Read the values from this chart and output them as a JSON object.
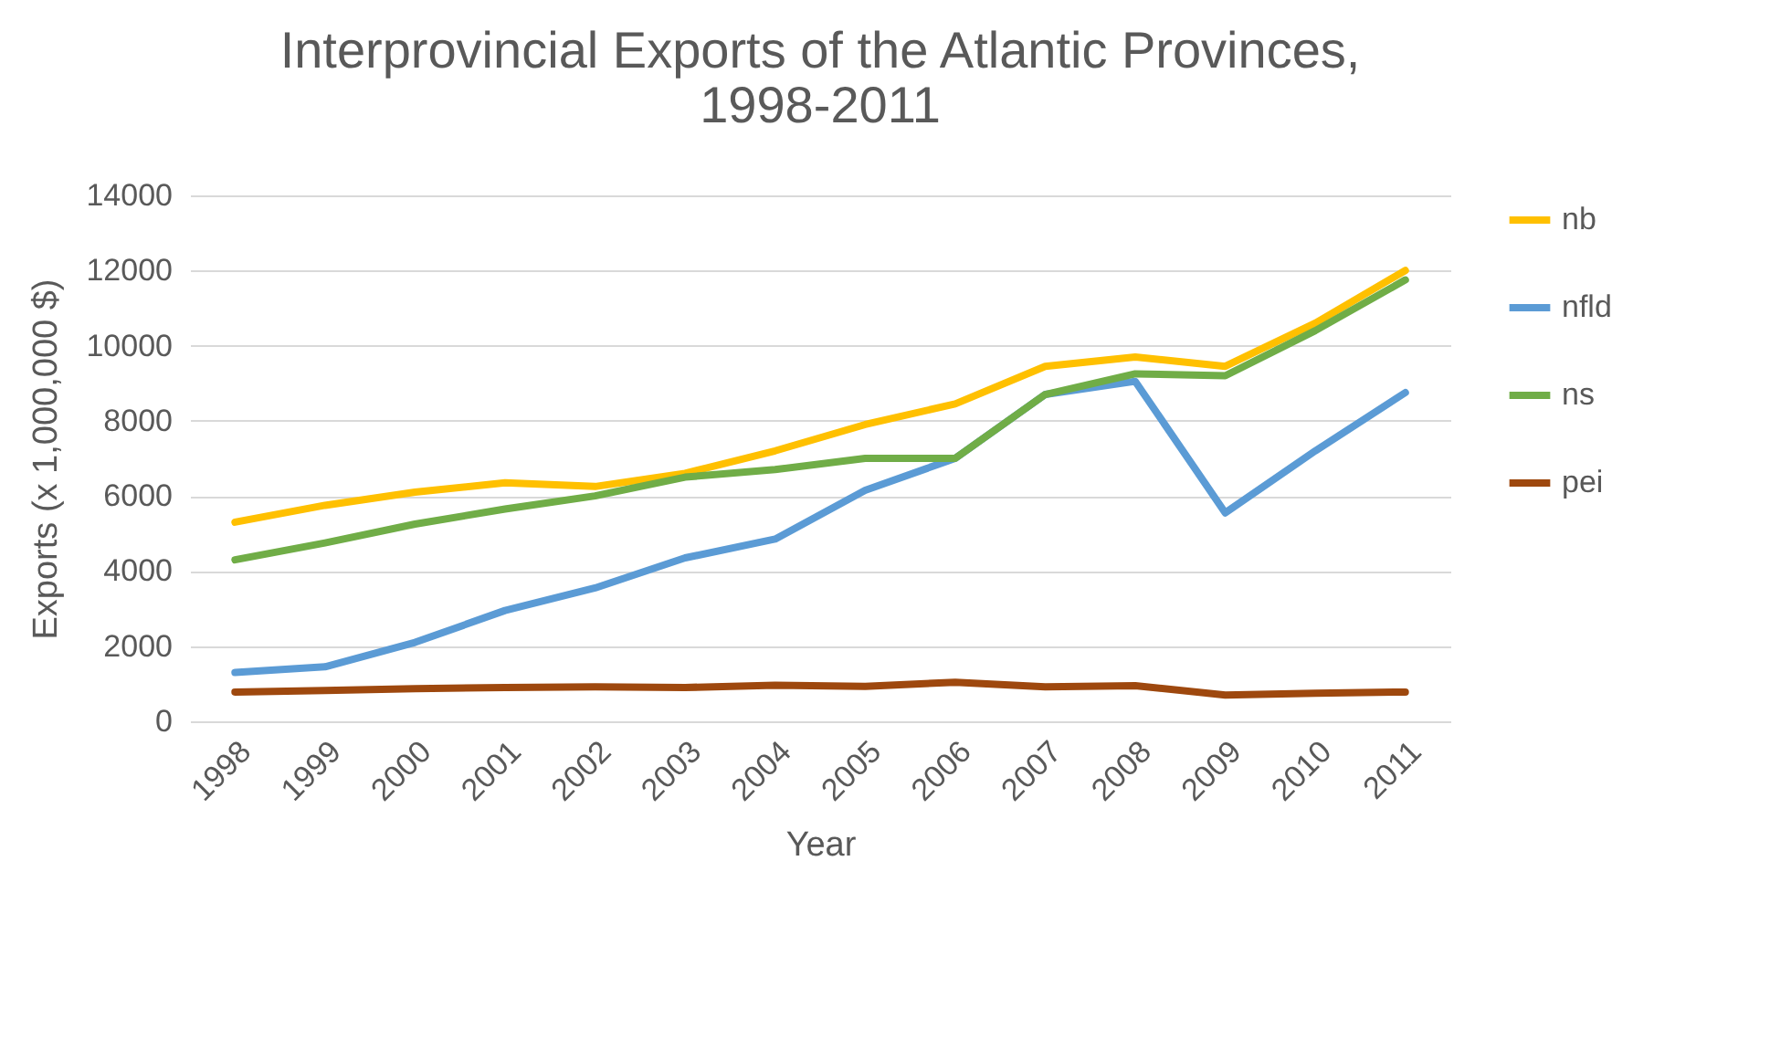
{
  "chart_data": {
    "type": "line",
    "title": "Interprovincial Exports of the Atlantic Provinces, 1998-2011",
    "xlabel": "Year",
    "ylabel": "Exports (x 1,000,000 $)",
    "categories": [
      "1998",
      "1999",
      "2000",
      "2001",
      "2002",
      "2003",
      "2004",
      "2005",
      "2006",
      "2007",
      "2008",
      "2009",
      "2010",
      "2011"
    ],
    "series": [
      {
        "name": "nb",
        "color": "#ffc000",
        "values": [
          5300,
          5750,
          6100,
          6350,
          6250,
          6600,
          7200,
          7900,
          8450,
          9450,
          9700,
          9450,
          10600,
          12000
        ]
      },
      {
        "name": "nfld",
        "color": "#5b9bd5",
        "values": [
          1300,
          1450,
          2100,
          2950,
          3550,
          4350,
          4850,
          6150,
          7000,
          8700,
          9050,
          5550,
          7200,
          8750
        ]
      },
      {
        "name": "ns",
        "color": "#70ad47",
        "values": [
          4300,
          4750,
          5250,
          5650,
          6000,
          6500,
          6700,
          7000,
          7000,
          8700,
          9250,
          9200,
          10400,
          11750
        ]
      },
      {
        "name": "pei",
        "color": "#9e480e",
        "values": [
          780,
          820,
          870,
          900,
          920,
          900,
          960,
          930,
          1040,
          920,
          950,
          700,
          750,
          780
        ]
      }
    ],
    "ylim": [
      0,
      14000
    ],
    "yticks": [
      0,
      2000,
      4000,
      6000,
      8000,
      10000,
      12000,
      14000
    ],
    "grid": "y",
    "legend": "right",
    "marker": "none",
    "line_style": "solid"
  }
}
